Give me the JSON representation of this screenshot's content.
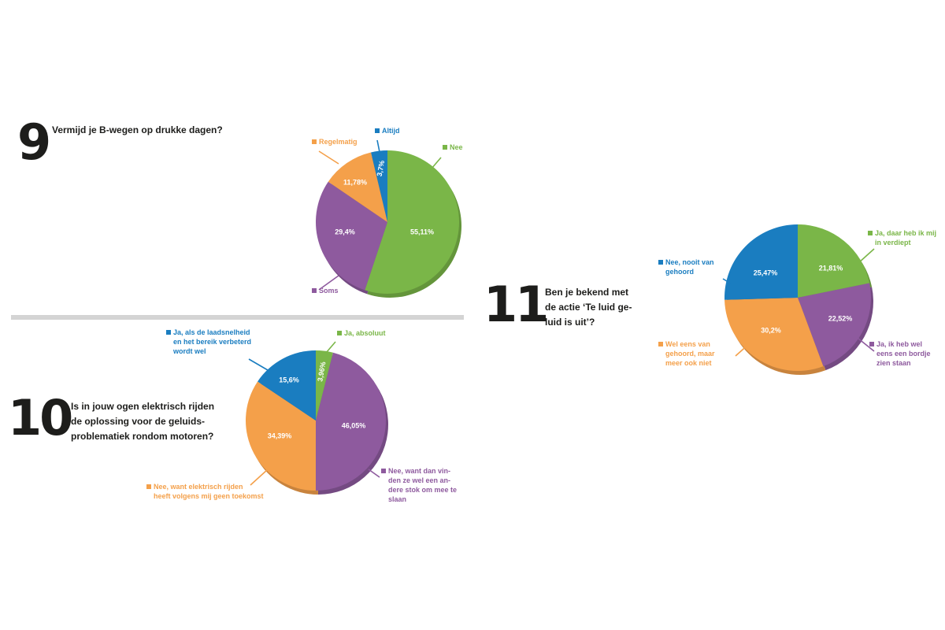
{
  "colors": {
    "green": "#7ab648",
    "blue": "#1a7dc0",
    "orange": "#f4a04a",
    "purple": "#8e5a9e"
  },
  "questions": [
    {
      "number": "9",
      "text": [
        "Vermijd je B-wegen op drukke dagen?"
      ]
    },
    {
      "number": "10",
      "text": [
        "Is in jouw ogen elektrisch rijden",
        "de oplossing voor de geluids-",
        "problematiek rondom motoren?"
      ]
    },
    {
      "number": "11",
      "text": [
        "Ben je bekend met",
        "de actie ‘Te luid ge-",
        "luid is uit’?"
      ]
    }
  ],
  "chart_data": [
    {
      "type": "pie",
      "title": "Vermijd je B-wegen op drukke dagen?",
      "slices": [
        {
          "label": "Nee",
          "value": 55.11,
          "value_label": "55,11%",
          "color": "#7ab648"
        },
        {
          "label": "Soms",
          "value": 29.4,
          "value_label": "29,4%",
          "color": "#8e5a9e"
        },
        {
          "label": "Regelmatig",
          "value": 11.78,
          "value_label": "11,78%",
          "color": "#f4a04a"
        },
        {
          "label": "Altijd",
          "value": 3.7,
          "value_label": "3,7%",
          "color": "#1a7dc0"
        }
      ]
    },
    {
      "type": "pie",
      "title": "Is in jouw ogen elektrisch rijden de oplossing voor de geluids-problematiek rondom motoren?",
      "slices": [
        {
          "label": "Ja, absoluut",
          "value": 3.96,
          "value_label": "3,96%",
          "color": "#7ab648"
        },
        {
          "label": "Nee, want dan vin-den ze wel een an-dere stok om mee te slaan",
          "value": 46.05,
          "value_label": "46,05%",
          "color": "#8e5a9e"
        },
        {
          "label": "Nee, want elektrisch rijden heeft volgens mij geen toekomst",
          "value": 34.39,
          "value_label": "34,39%",
          "color": "#f4a04a"
        },
        {
          "label": "Ja, als de laadsnelheid en het bereik verbeterd wordt wel",
          "value": 15.6,
          "value_label": "15,6%",
          "color": "#1a7dc0"
        }
      ]
    },
    {
      "type": "pie",
      "title": "Ben je bekend met de actie ‘Te luid geluid is uit’?",
      "slices": [
        {
          "label": "Ja, daar heb ik mij in verdiept",
          "value": 21.81,
          "value_label": "21,81%",
          "color": "#7ab648"
        },
        {
          "label": "Ja, ik heb wel eens een bordje zien staan",
          "value": 22.52,
          "value_label": "22,52%",
          "color": "#8e5a9e"
        },
        {
          "label": "Wel eens van gehoord, maar meer ook niet",
          "value": 30.2,
          "value_label": "30,2%",
          "color": "#f4a04a"
        },
        {
          "label": "Nee, nooit van gehoord",
          "value": 25.47,
          "value_label": "25,47%",
          "color": "#1a7dc0"
        }
      ]
    }
  ],
  "legend_lines": [
    [
      [
        "Nee"
      ],
      [
        "Soms"
      ],
      [
        "Regelmatig"
      ],
      [
        "Altijd"
      ]
    ],
    [
      [
        "Ja, absoluut"
      ],
      [
        "Nee, want dan vin-",
        "den ze wel een an-",
        "dere stok om mee te",
        "slaan"
      ],
      [
        "Nee, want elektrisch rijden",
        "heeft volgens mij geen toekomst"
      ],
      [
        "Ja, als de laadsnelheid",
        "en het bereik verbeterd",
        "wordt wel"
      ]
    ],
    [
      [
        "Ja, daar heb ik mij",
        "in verdiept"
      ],
      [
        "Ja, ik heb wel",
        "eens een bordje",
        "zien staan"
      ],
      [
        "Wel eens van",
        "gehoord, maar",
        "meer ook niet"
      ],
      [
        "Nee, nooit van",
        "gehoord"
      ]
    ]
  ]
}
